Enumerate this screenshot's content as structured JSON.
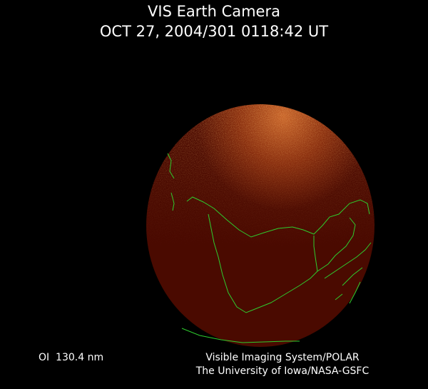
{
  "header": {
    "title": "VIS Earth Camera",
    "timestamp": "OCT 27, 2004/301 0118:42 UT"
  },
  "footer": {
    "filter": "OI  130.4 nm",
    "instrument": "Visible Imaging System/POLAR",
    "institution": "The University of Iowa/NASA-GSFC"
  },
  "colors": {
    "background": "#000000",
    "earth_disk": "#4a0a00",
    "aurora_glow": "#d9782a",
    "coastlines": "#2ecc2e"
  }
}
